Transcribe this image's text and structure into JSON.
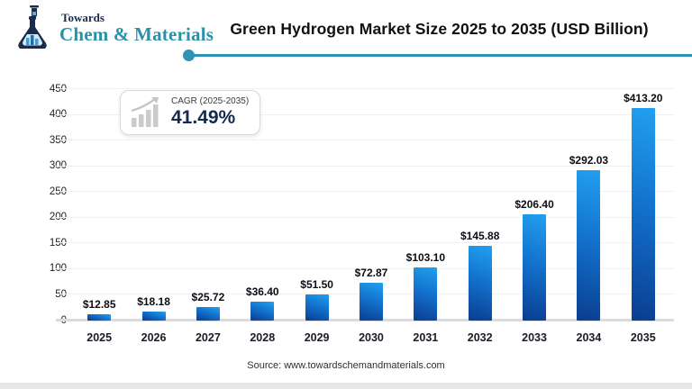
{
  "header": {
    "logo_top": "Towards",
    "logo_bottom": "Chem & Materials",
    "title": "Green Hydrogen Market Size 2025 to 2035 (USD Billion)"
  },
  "cagr_badge": {
    "label": "CAGR (2025-2035)",
    "value": "41.49%"
  },
  "chart_data": {
    "type": "bar",
    "title": "Green Hydrogen Market Size 2025 to 2035 (USD Billion)",
    "categories": [
      "2025",
      "2026",
      "2027",
      "2028",
      "2029",
      "2030",
      "2031",
      "2032",
      "2033",
      "2034",
      "2035"
    ],
    "values": [
      12.85,
      18.18,
      25.72,
      36.4,
      51.5,
      72.87,
      103.1,
      145.88,
      206.4,
      292.03,
      413.2
    ],
    "value_labels": [
      "$12.85",
      "$18.18",
      "$25.72",
      "$36.40",
      "$51.50",
      "$72.87",
      "$103.10",
      "$145.88",
      "$206.40",
      "$292.03",
      "$413.20"
    ],
    "xlabel": "",
    "ylabel": "",
    "ylim": [
      0,
      450
    ],
    "ytick_step": 50,
    "grid": true,
    "legend": "none"
  },
  "footer": {
    "source": "Source: www.towardschemandmaterials.com"
  },
  "colors": {
    "bar_gradient_top": "#22a0ef",
    "bar_gradient_bottom": "#0a3d8f",
    "accent_teal": "#2e93b8",
    "logo_navy": "#1c2b4d",
    "logo_teal": "#2b90aa",
    "cagr_value_navy": "#14294e",
    "gridline": "#f0f1f3",
    "baseline": "#d9dbde"
  }
}
